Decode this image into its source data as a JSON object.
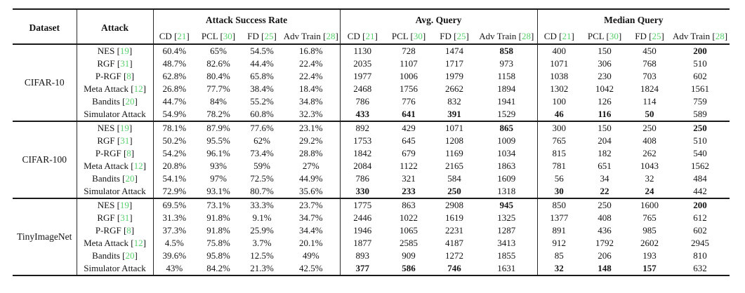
{
  "colors": {
    "citation_green": "#57d06b",
    "text": "#141414",
    "rule": "#1a1a1a",
    "background": "#ffffff"
  },
  "table": {
    "header": {
      "dataset_label": "Dataset",
      "attack_label": "Attack",
      "groups": [
        {
          "title": "Attack Success Rate"
        },
        {
          "title": "Avg. Query"
        },
        {
          "title": "Median Query"
        }
      ],
      "subcolumns": [
        {
          "label": "CD",
          "cite": "21"
        },
        {
          "label": "PCL",
          "cite": "30"
        },
        {
          "label": "FD",
          "cite": "25"
        },
        {
          "label": "Adv Train",
          "cite": "28"
        }
      ]
    },
    "blocks": [
      {
        "dataset": "CIFAR-10",
        "rows": [
          {
            "attack": "NES",
            "cite": "19",
            "asr": [
              "60.4%",
              "65%",
              "54.5%",
              "16.8%"
            ],
            "avg": [
              "1130",
              "728",
              "1474",
              "858"
            ],
            "avg_bold": [
              3
            ],
            "med": [
              "400",
              "150",
              "450",
              "200"
            ],
            "med_bold": [
              3
            ]
          },
          {
            "attack": "RGF",
            "cite": "31",
            "asr": [
              "48.7%",
              "82.6%",
              "44.4%",
              "22.4%"
            ],
            "avg": [
              "2035",
              "1107",
              "1717",
              "973"
            ],
            "avg_bold": [],
            "med": [
              "1071",
              "306",
              "768",
              "510"
            ],
            "med_bold": []
          },
          {
            "attack": "P-RGF",
            "cite": "8",
            "asr": [
              "62.8%",
              "80.4%",
              "65.8%",
              "22.4%"
            ],
            "avg": [
              "1977",
              "1006",
              "1979",
              "1158"
            ],
            "avg_bold": [],
            "med": [
              "1038",
              "230",
              "703",
              "602"
            ],
            "med_bold": []
          },
          {
            "attack": "Meta Attack",
            "cite": "12",
            "asr": [
              "26.8%",
              "77.7%",
              "38.4%",
              "18.4%"
            ],
            "avg": [
              "2468",
              "1756",
              "2662",
              "1894"
            ],
            "avg_bold": [],
            "med": [
              "1302",
              "1042",
              "1824",
              "1561"
            ],
            "med_bold": []
          },
          {
            "attack": "Bandits",
            "cite": "20",
            "asr": [
              "44.7%",
              "84%",
              "55.2%",
              "34.8%"
            ],
            "avg": [
              "786",
              "776",
              "832",
              "1941"
            ],
            "avg_bold": [],
            "med": [
              "100",
              "126",
              "114",
              "759"
            ],
            "med_bold": []
          },
          {
            "attack": "Simulator Attack",
            "cite": null,
            "asr": [
              "54.9%",
              "78.2%",
              "60.8%",
              "32.3%"
            ],
            "avg": [
              "433",
              "641",
              "391",
              "1529"
            ],
            "avg_bold": [
              0,
              1,
              2
            ],
            "med": [
              "46",
              "116",
              "50",
              "589"
            ],
            "med_bold": [
              0,
              1,
              2
            ]
          }
        ]
      },
      {
        "dataset": "CIFAR-100",
        "rows": [
          {
            "attack": "NES",
            "cite": "19",
            "asr": [
              "78.1%",
              "87.9%",
              "77.6%",
              "23.1%"
            ],
            "avg": [
              "892",
              "429",
              "1071",
              "865"
            ],
            "avg_bold": [
              3
            ],
            "med": [
              "300",
              "150",
              "250",
              "250"
            ],
            "med_bold": [
              3
            ]
          },
          {
            "attack": "RGF",
            "cite": "31",
            "asr": [
              "50.2%",
              "95.5%",
              "62%",
              "29.2%"
            ],
            "avg": [
              "1753",
              "645",
              "1208",
              "1009"
            ],
            "avg_bold": [],
            "med": [
              "765",
              "204",
              "408",
              "510"
            ],
            "med_bold": []
          },
          {
            "attack": "P-RGF",
            "cite": "8",
            "asr": [
              "54.2%",
              "96.1%",
              "73.4%",
              "28.8%"
            ],
            "avg": [
              "1842",
              "679",
              "1169",
              "1034"
            ],
            "avg_bold": [],
            "med": [
              "815",
              "182",
              "262",
              "540"
            ],
            "med_bold": []
          },
          {
            "attack": "Meta Attack",
            "cite": "12",
            "asr": [
              "20.8%",
              "93%",
              "59%",
              "27%"
            ],
            "avg": [
              "2084",
              "1122",
              "2165",
              "1863"
            ],
            "avg_bold": [],
            "med": [
              "781",
              "651",
              "1043",
              "1562"
            ],
            "med_bold": []
          },
          {
            "attack": "Bandits",
            "cite": "20",
            "asr": [
              "54.1%",
              "97%",
              "72.5%",
              "44.9%"
            ],
            "avg": [
              "786",
              "321",
              "584",
              "1609"
            ],
            "avg_bold": [],
            "med": [
              "56",
              "34",
              "32",
              "484"
            ],
            "med_bold": []
          },
          {
            "attack": "Simulator Attack",
            "cite": null,
            "asr": [
              "72.9%",
              "93.1%",
              "80.7%",
              "35.6%"
            ],
            "avg": [
              "330",
              "233",
              "250",
              "1318"
            ],
            "avg_bold": [
              0,
              1,
              2
            ],
            "med": [
              "30",
              "22",
              "24",
              "442"
            ],
            "med_bold": [
              0,
              1,
              2
            ]
          }
        ]
      },
      {
        "dataset": "TinyImageNet",
        "rows": [
          {
            "attack": "NES",
            "cite": "19",
            "asr": [
              "69.5%",
              "73.1%",
              "33.3%",
              "23.7%"
            ],
            "avg": [
              "1775",
              "863",
              "2908",
              "945"
            ],
            "avg_bold": [
              3
            ],
            "med": [
              "850",
              "250",
              "1600",
              "200"
            ],
            "med_bold": [
              3
            ]
          },
          {
            "attack": "RGF",
            "cite": "31",
            "asr": [
              "31.3%",
              "91.8%",
              "9.1%",
              "34.7%"
            ],
            "avg": [
              "2446",
              "1022",
              "1619",
              "1325"
            ],
            "avg_bold": [],
            "med": [
              "1377",
              "408",
              "765",
              "612"
            ],
            "med_bold": []
          },
          {
            "attack": "P-RGF",
            "cite": "8",
            "asr": [
              "37.3%",
              "91.8%",
              "25.9%",
              "34.4%"
            ],
            "avg": [
              "1946",
              "1065",
              "2231",
              "1287"
            ],
            "avg_bold": [],
            "med": [
              "891",
              "436",
              "985",
              "602"
            ],
            "med_bold": []
          },
          {
            "attack": "Meta Attack",
            "cite": "12",
            "asr": [
              "4.5%",
              "75.8%",
              "3.7%",
              "20.1%"
            ],
            "avg": [
              "1877",
              "2585",
              "4187",
              "3413"
            ],
            "avg_bold": [],
            "med": [
              "912",
              "1792",
              "2602",
              "2945"
            ],
            "med_bold": []
          },
          {
            "attack": "Bandits",
            "cite": "20",
            "asr": [
              "39.6%",
              "95.8%",
              "12.5%",
              "49%"
            ],
            "avg": [
              "893",
              "909",
              "1272",
              "1855"
            ],
            "avg_bold": [],
            "med": [
              "85",
              "206",
              "193",
              "810"
            ],
            "med_bold": []
          },
          {
            "attack": "Simulator Attack",
            "cite": null,
            "asr": [
              "43%",
              "84.2%",
              "21.3%",
              "42.5%"
            ],
            "avg": [
              "377",
              "586",
              "746",
              "1631"
            ],
            "avg_bold": [
              0,
              1,
              2
            ],
            "med": [
              "32",
              "148",
              "157",
              "632"
            ],
            "med_bold": [
              0,
              1,
              2
            ]
          }
        ]
      }
    ]
  }
}
